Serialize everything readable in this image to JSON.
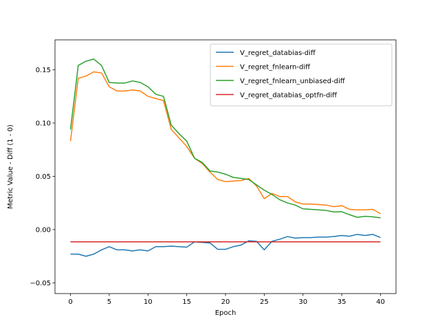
{
  "chart_data": {
    "type": "line",
    "title": "",
    "xlabel": "Epoch",
    "ylabel": "Metric Value - Diff (1 - 0)",
    "xlim": [
      -2,
      42
    ],
    "ylim": [
      -0.06,
      0.178
    ],
    "xticks": [
      0,
      5,
      10,
      15,
      20,
      25,
      30,
      35,
      40
    ],
    "xtick_labels": [
      "0",
      "5",
      "10",
      "15",
      "20",
      "25",
      "30",
      "35",
      "40"
    ],
    "yticks": [
      -0.05,
      0.0,
      0.05,
      0.1,
      0.15
    ],
    "ytick_labels": [
      "−0.05",
      "0.00",
      "0.05",
      "0.10",
      "0.15"
    ],
    "grid": false,
    "legend_position": "top-right",
    "x": [
      0,
      1,
      2,
      3,
      4,
      5,
      6,
      7,
      8,
      9,
      10,
      11,
      12,
      13,
      14,
      15,
      16,
      17,
      18,
      19,
      20,
      21,
      22,
      23,
      24,
      25,
      26,
      27,
      28,
      29,
      30,
      31,
      32,
      33,
      34,
      35,
      36,
      37,
      38,
      39,
      40
    ],
    "series": [
      {
        "name": "V_regret_databias-diff",
        "color": "#1f77b4",
        "values": [
          -0.023,
          -0.023,
          -0.025,
          -0.023,
          -0.019,
          -0.016,
          -0.019,
          -0.019,
          -0.02,
          -0.019,
          -0.02,
          -0.016,
          -0.016,
          -0.0155,
          -0.016,
          -0.0165,
          -0.0115,
          -0.012,
          -0.0125,
          -0.0185,
          -0.0185,
          -0.016,
          -0.0145,
          -0.0105,
          -0.011,
          -0.019,
          -0.011,
          -0.009,
          -0.0065,
          -0.008,
          -0.0075,
          -0.0075,
          -0.007,
          -0.007,
          -0.0065,
          -0.0055,
          -0.0062,
          -0.0045,
          -0.0055,
          -0.0045,
          -0.0075
        ]
      },
      {
        "name": "V_regret_fnlearn-diff",
        "color": "#ff7f0e",
        "values": [
          0.083,
          0.142,
          0.144,
          0.148,
          0.147,
          0.134,
          0.13,
          0.13,
          0.131,
          0.13,
          0.125,
          0.123,
          0.121,
          0.094,
          0.086,
          0.078,
          0.067,
          0.062,
          0.054,
          0.047,
          0.045,
          0.0455,
          0.046,
          0.048,
          0.041,
          0.029,
          0.034,
          0.031,
          0.031,
          0.026,
          0.024,
          0.024,
          0.0235,
          0.023,
          0.0215,
          0.0225,
          0.019,
          0.0185,
          0.0185,
          0.019,
          0.015
        ]
      },
      {
        "name": "V_regret_fnlearn_unbiased-diff",
        "color": "#2ca02c",
        "values": [
          0.094,
          0.154,
          0.158,
          0.16,
          0.154,
          0.138,
          0.1375,
          0.1375,
          0.1395,
          0.138,
          0.134,
          0.127,
          0.125,
          0.098,
          0.09,
          0.083,
          0.067,
          0.063,
          0.055,
          0.054,
          0.052,
          0.049,
          0.048,
          0.047,
          0.042,
          0.037,
          0.033,
          0.028,
          0.025,
          0.023,
          0.0195,
          0.019,
          0.0185,
          0.018,
          0.0165,
          0.0168,
          0.014,
          0.0115,
          0.0125,
          0.012,
          0.011
        ]
      },
      {
        "name": "V_regret_databias_optfn-diff",
        "color": "#d62728",
        "values": [
          -0.0115,
          -0.0115,
          -0.0115,
          -0.0115,
          -0.0115,
          -0.0115,
          -0.0115,
          -0.0115,
          -0.0115,
          -0.0115,
          -0.0115,
          -0.0115,
          -0.0115,
          -0.0115,
          -0.0115,
          -0.0115,
          -0.0115,
          -0.0115,
          -0.0115,
          -0.0115,
          -0.0115,
          -0.0115,
          -0.0115,
          -0.0115,
          -0.0115,
          -0.0115,
          -0.0115,
          -0.0115,
          -0.0115,
          -0.0115,
          -0.0115,
          -0.0115,
          -0.0115,
          -0.0115,
          -0.0115,
          -0.0115,
          -0.0115,
          -0.0115,
          -0.0115,
          -0.0115,
          -0.0115
        ]
      }
    ]
  }
}
